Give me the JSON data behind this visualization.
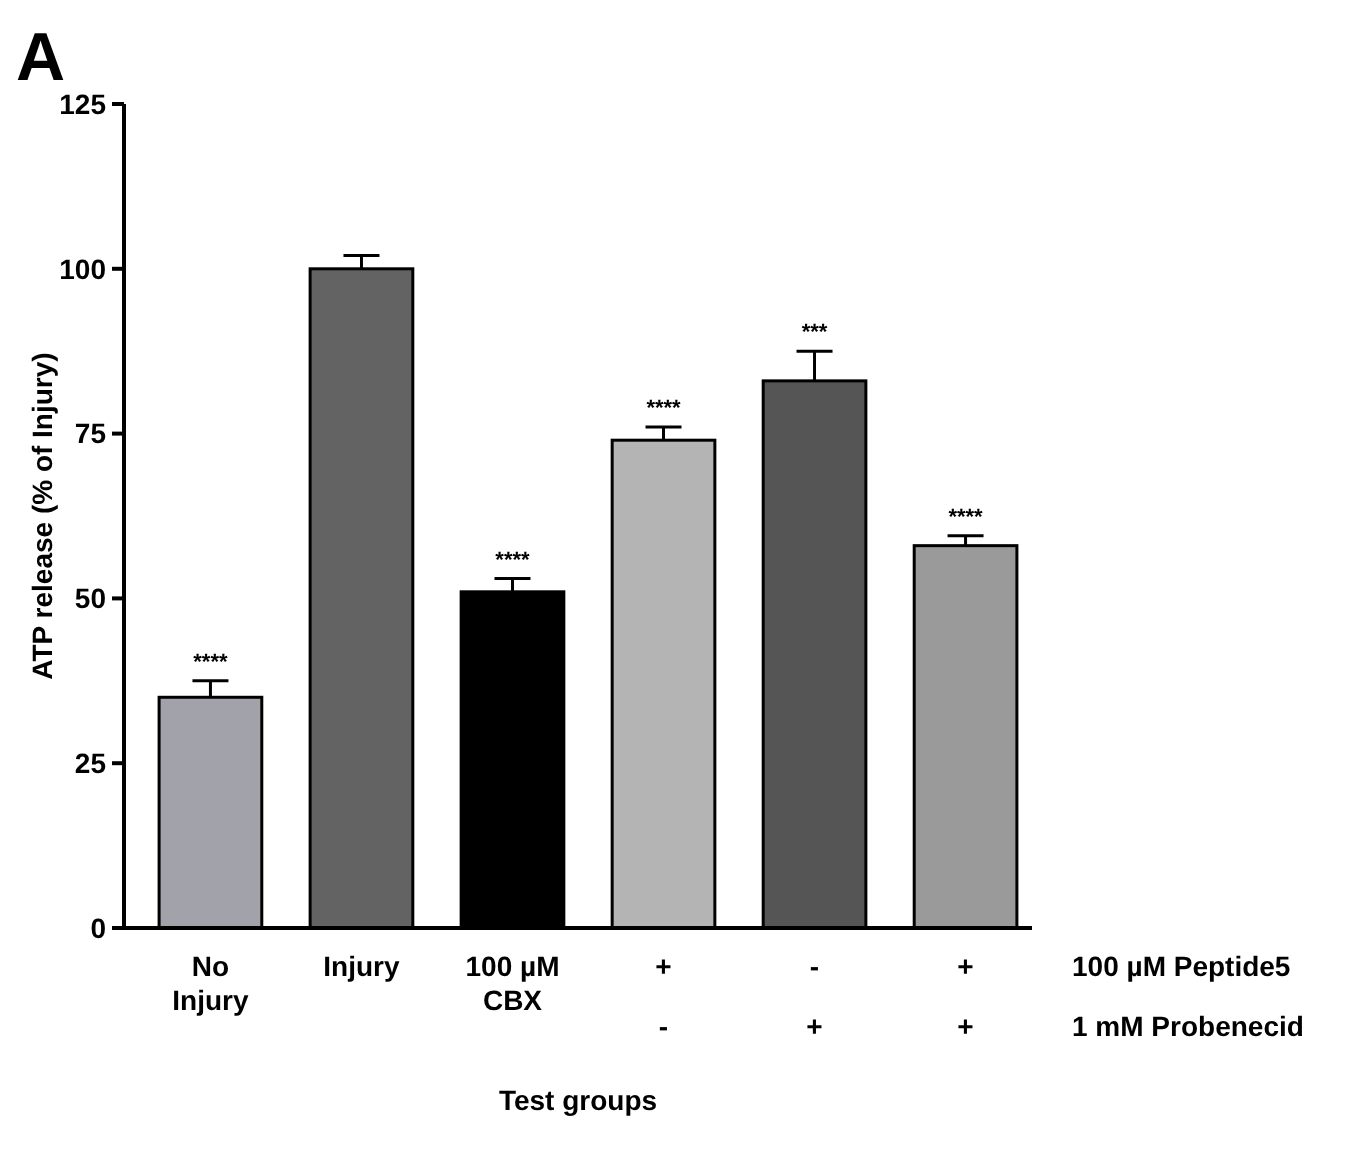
{
  "chart_data": {
    "type": "bar",
    "ylabel": "ATP release  (% of Injury)",
    "xlabel": "Test groups",
    "categories": [
      "No\nInjury",
      "Injury",
      "100 µM\nCBX",
      "+\n-",
      "-\n+",
      "+\n+"
    ],
    "values": [
      35,
      100,
      51,
      74,
      83,
      58
    ],
    "colors": [
      "#a2a2aa",
      "#636363",
      "#000000",
      "#b4b4b4",
      "#555555",
      "#9a9a9a"
    ],
    "errors": [
      2.5,
      2,
      2,
      2,
      4.5,
      1.5
    ],
    "ylim": [
      0,
      125
    ],
    "yticks": [
      0,
      25,
      50,
      75,
      100,
      125
    ],
    "annotations": [
      "A",
      {
        "text": "****",
        "x": "No\nInjury",
        "y": 37.5
      },
      {
        "text": "****",
        "x": "100 µM\nCBX",
        "y": 53
      },
      {
        "text": "****",
        "x": "+\n-",
        "y": 76
      },
      {
        "text": "***",
        "x": "-\n+",
        "y": 87.5
      },
      {
        "text": "****",
        "x": "+\n+",
        "y": 59.5
      },
      "100 µM Peptide5",
      "1 mM Probenecid"
    ]
  }
}
